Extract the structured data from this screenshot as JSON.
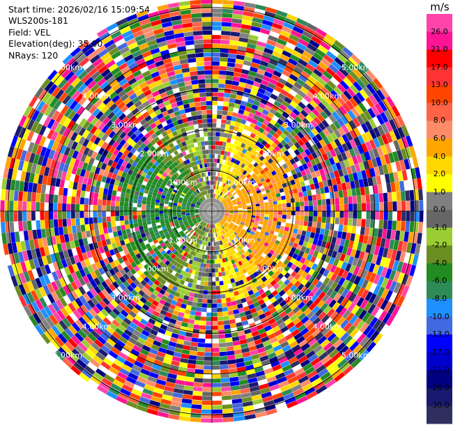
{
  "header": {
    "start_time": "Start time: 2026/02/16 15:09:54",
    "instrument": "WLS200s-181",
    "field": "Field: VEL",
    "elevation": "Elevation(deg): 35.00",
    "nrays": "NRays: 120"
  },
  "chart_data": {
    "type": "heatmap",
    "projection": "polar-ppi",
    "field": "VEL",
    "n_rays": 120,
    "range_rings_km": [
      1,
      2,
      3,
      4,
      5
    ],
    "ring_labels": [
      "1.00km",
      "2.00km",
      "3.00km",
      "4.00km",
      "5.00km"
    ],
    "max_range_km": 5.2,
    "colorbar": {
      "unit": "m/s",
      "ticks": [
        "26.0",
        "21.0",
        "17.0",
        "13.0",
        "10.0",
        "8.0",
        "6.0",
        "4.0",
        "2.0",
        "1.0",
        "0.0",
        "-1.0",
        "-2.0",
        "-4.0",
        "-6.0",
        "-8.0",
        "-10.0",
        "-13.0",
        "-17.0",
        "-21.0",
        "-26.0",
        "-30.0"
      ],
      "colors": [
        "#ff44aa",
        "#ff1493",
        "#ff0000",
        "#ff3333",
        "#ff4500",
        "#ff6347",
        "#ff8c69",
        "#ffa500",
        "#ffd700",
        "#ffff00",
        "#808080",
        "#666666",
        "#9acd32",
        "#6b8e23",
        "#228b22",
        "#2e8b57",
        "#1e90ff",
        "#4169e1",
        "#0000ff",
        "#0000cd",
        "#000080",
        "#191970",
        "#2f2f5f"
      ]
    }
  }
}
